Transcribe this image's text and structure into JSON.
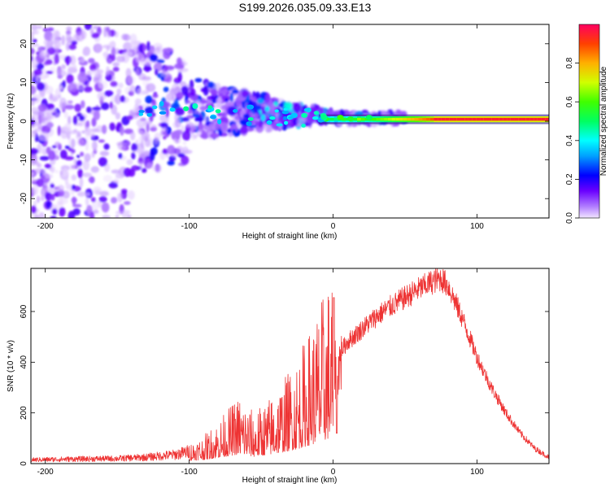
{
  "title": "S199.2026.035.09.33.E13",
  "chart_data": [
    {
      "type": "heatmap",
      "xlabel": "Height of straight line (km)",
      "ylabel": "Frequency (Hz)",
      "xlim": [
        -210,
        150
      ],
      "ylim": [
        -25,
        25
      ],
      "xticks": [
        -200,
        -100,
        0,
        100
      ],
      "yticks": [
        -20,
        -10,
        0,
        10,
        20
      ],
      "colorbar": {
        "label": "Normalized spectral amplitude",
        "range": [
          0,
          1
        ],
        "ticks": [
          0.0,
          0.2,
          0.4,
          0.6,
          0.8
        ]
      },
      "ridge": {
        "description": "strong narrow band near 0.5 Hz from about -10 km to 150 km",
        "frequency_hz": 0.5,
        "x_start": -10,
        "x_end": 150
      }
    },
    {
      "type": "line",
      "xlabel": "Height of straight line (km)",
      "ylabel": "SNR (10 * v/v)",
      "xlim": [
        -210,
        150
      ],
      "ylim": [
        0,
        770
      ],
      "xticks": [
        -200,
        -100,
        0,
        100
      ],
      "yticks": [
        0,
        200,
        400,
        600
      ],
      "series": [
        {
          "name": "SNR",
          "color": "#ee3333",
          "envelope_x": [
            -210,
            -180,
            -150,
            -130,
            -110,
            -90,
            -75,
            -65,
            -55,
            -45,
            -35,
            -25,
            -15,
            -5,
            0,
            2,
            10,
            20,
            30,
            40,
            50,
            60,
            70,
            75,
            80,
            90,
            100,
            110,
            120,
            130,
            140,
            150
          ],
          "envelope_y": [
            15,
            18,
            20,
            25,
            35,
            60,
            110,
            150,
            110,
            140,
            180,
            230,
            300,
            380,
            420,
            420,
            480,
            530,
            580,
            620,
            655,
            690,
            720,
            730,
            700,
            570,
            420,
            300,
            200,
            120,
            60,
            25
          ]
        }
      ],
      "peak_annotation": {
        "x": 0,
        "y": 655
      }
    }
  ]
}
